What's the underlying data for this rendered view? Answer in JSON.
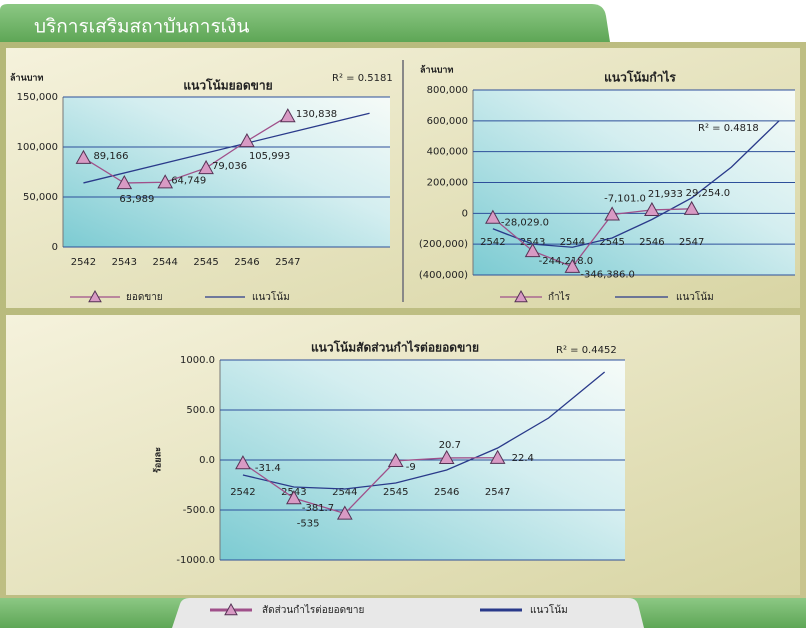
{
  "header": {
    "title": "บริการเสริมสถาบันการเงิน"
  },
  "chart_data": [
    {
      "type": "line",
      "title": "แนวโน้มยอดขาย",
      "y_label": "ล้านบาท",
      "annotation": "R² = 0.5181",
      "x": [
        2542,
        2543,
        2544,
        2545,
        2546,
        2547
      ],
      "xlim": [
        2541.5,
        2549.5
      ],
      "xticks": [
        2542,
        2543,
        2544,
        2545,
        2546,
        2547
      ],
      "ylim": [
        0,
        150000
      ],
      "yticks": [
        {
          "value": 0,
          "label": "0"
        },
        {
          "value": 50000,
          "label": "50,000"
        },
        {
          "value": 100000,
          "label": "100,000"
        },
        {
          "value": 150000,
          "label": "150,000"
        }
      ],
      "grid": true,
      "series": [
        {
          "name": "ยอดขาย",
          "color": "#a0508a",
          "values": [
            89166,
            63989,
            64749,
            79036,
            105993,
            130838
          ],
          "value_labels": [
            "89,166",
            "63,989",
            "64,749",
            "79,036",
            "105,993",
            "130,838"
          ]
        },
        {
          "name": "แนวโน้ม",
          "color": "#2a3a8a",
          "x": [
            2542,
            2549
          ],
          "values": [
            64058,
            133789
          ]
        }
      ]
    },
    {
      "type": "line",
      "title": "แนวโน้มกำไร",
      "y_label": "ล้านบาท",
      "annotation": "R² = 0.4818",
      "x": [
        2542,
        2543,
        2544,
        2545,
        2546,
        2547
      ],
      "xlim": [
        2541.5,
        2549.6
      ],
      "xticks": [
        2542,
        2543,
        2544,
        2545,
        2546,
        2547
      ],
      "ylim": [
        -400000,
        800000
      ],
      "yticks": [
        {
          "value": -400000,
          "label": "(400,000)"
        },
        {
          "value": -200000,
          "label": "(200,000)"
        },
        0,
        {
          "value": 200000,
          "label": "200,000"
        },
        {
          "value": 400000,
          "label": "400,000"
        },
        {
          "value": 600000,
          "label": "600,000"
        },
        {
          "value": 800000,
          "label": "800,000"
        }
      ],
      "grid": true,
      "series": [
        {
          "name": "กำไร",
          "color": "#a0508a",
          "values": [
            -28029,
            -244218,
            -346386,
            -7101,
            21933,
            29254
          ],
          "value_labels": [
            "-28,029.0",
            "-244,218.0",
            "-346,386.0",
            "-7,101.0",
            "21,933",
            "29,254.0"
          ]
        },
        {
          "name": "แนวโน้ม",
          "color": "#2a3a8a",
          "x": [
            2542,
            2543,
            2544,
            2545,
            2546,
            2547,
            2548,
            2549.2
          ],
          "values": [
            -100000,
            -200000,
            -220000,
            -160000,
            -40000,
            100000,
            300000,
            600000
          ]
        }
      ]
    },
    {
      "type": "line",
      "title": "แนวโน้มสัดส่วนกำไรต่อยอดขาย",
      "y_label": "ร้อยละ",
      "annotation": "R² = 0.4452",
      "x": [
        2542,
        2543,
        2544,
        2545,
        2546,
        2547
      ],
      "xlim": [
        2541.55,
        2549.5
      ],
      "xticks": [
        2542,
        2543,
        2544,
        2545,
        2546,
        2547
      ],
      "ylim": [
        -1000,
        1000
      ],
      "yticks": [
        {
          "value": -1000,
          "label": "-1000.0"
        },
        {
          "value": -500,
          "label": "-500.0"
        },
        {
          "value": 0,
          "label": "0.0"
        },
        {
          "value": 500,
          "label": "500.0"
        },
        {
          "value": 1000,
          "label": "1000.0"
        }
      ],
      "grid": true,
      "series": [
        {
          "name": "สัดส่วนกำไรต่อยอดขาย",
          "color": "#a0508a",
          "values": [
            -31.4,
            -381.7,
            -535.0,
            -9.0,
            20.7,
            22.4
          ]
        },
        {
          "name": "แนวโน้ม",
          "color": "#2a3a8a",
          "x": [
            2542,
            2543,
            2544,
            2545,
            2546,
            2547,
            2548,
            2549.1
          ],
          "values": [
            -150,
            -270,
            -290,
            -230,
            -100,
            120,
            420,
            880
          ]
        }
      ]
    }
  ]
}
